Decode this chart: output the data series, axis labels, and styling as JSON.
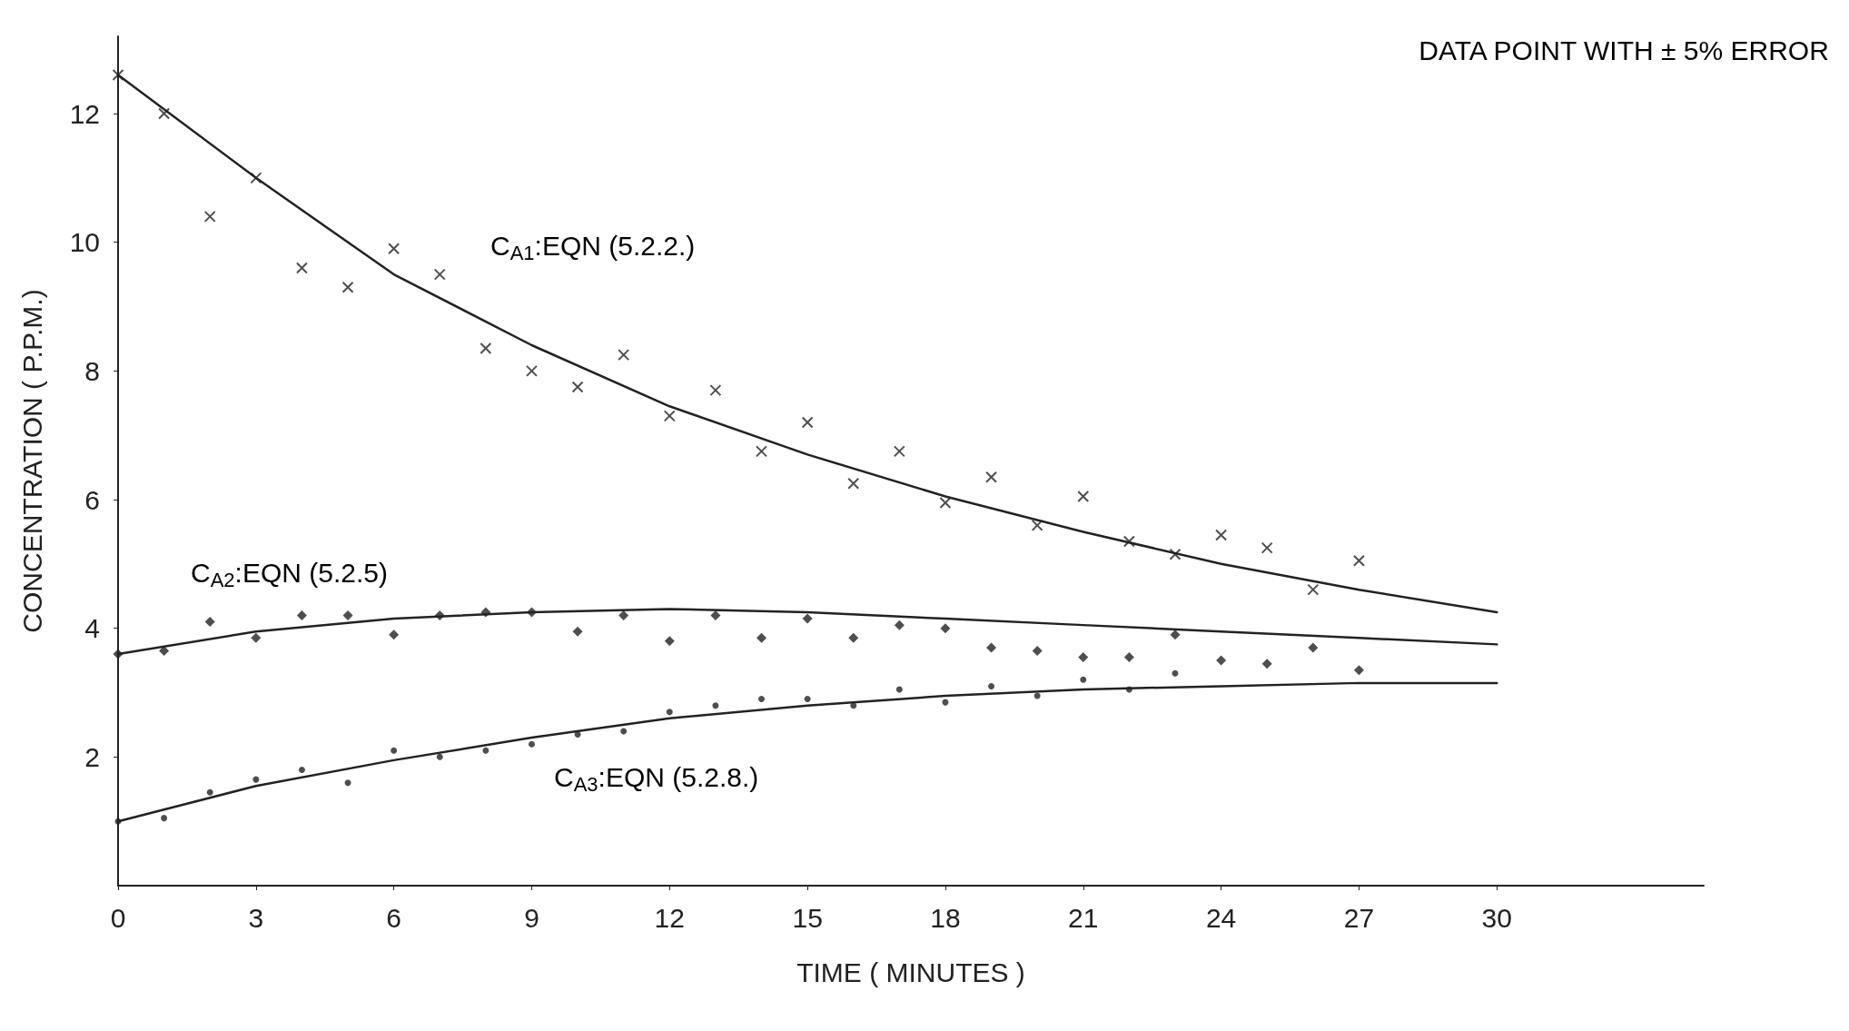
{
  "chart_data": {
    "type": "scatter",
    "xlabel": "TIME ( MINUTES )",
    "ylabel": "CONCENTRATION ( P.P.M.)",
    "xlim": [
      0,
      34.5
    ],
    "ylim": [
      0,
      13.2
    ],
    "xticks": [
      0,
      3,
      6,
      9,
      12,
      15,
      18,
      21,
      24,
      27,
      30
    ],
    "yticks": [
      2,
      4,
      6,
      8,
      10,
      12
    ],
    "grid": false,
    "annotations": [
      "DATA POINT WITH ± 5% ERROR",
      "C$_{A1}$:EQN (5.2.2.)",
      "C$_{A2}$:EQN (5.2.5)",
      "C$_{A3}$:EQN (5.2.8.)"
    ],
    "series": [
      {
        "marker": "cross",
        "color": "#222222",
        "x": [
          0,
          1,
          2,
          3,
          4,
          5,
          6,
          7,
          8,
          9,
          10,
          11,
          12,
          13,
          14,
          15,
          16,
          17,
          18,
          19,
          20,
          21,
          22,
          23,
          24,
          25,
          26,
          27
        ],
        "values": [
          12.6,
          12.0,
          10.4,
          11.0,
          9.6,
          9.3,
          9.9,
          9.5,
          8.35,
          8.0,
          7.75,
          8.25,
          7.3,
          7.7,
          6.75,
          7.2,
          6.25,
          6.75,
          5.95,
          6.35,
          5.6,
          6.05,
          5.35,
          5.15,
          5.45,
          5.25,
          4.6,
          5.05
        ]
      },
      {
        "marker": "diamond",
        "color": "#222222",
        "x": [
          0,
          1,
          2,
          3,
          4,
          5,
          6,
          7,
          8,
          9,
          10,
          11,
          12,
          13,
          14,
          15,
          16,
          17,
          18,
          19,
          20,
          21,
          22,
          23,
          24,
          25,
          26,
          27
        ],
        "values": [
          3.6,
          3.65,
          4.1,
          3.85,
          4.2,
          4.2,
          3.9,
          4.2,
          4.25,
          4.25,
          3.95,
          4.2,
          3.8,
          4.2,
          3.85,
          4.15,
          3.85,
          4.05,
          4.0,
          3.7,
          3.65,
          3.55,
          3.55,
          3.9,
          3.5,
          3.45,
          3.7,
          3.35
        ]
      },
      {
        "marker": "circle",
        "color": "#222222",
        "x": [
          0,
          1,
          2,
          3,
          4,
          5,
          6,
          7,
          8,
          9,
          10,
          11,
          12,
          13,
          14,
          15,
          16,
          17,
          18,
          19,
          20,
          21,
          22,
          23
        ],
        "values": [
          1.0,
          1.05,
          1.45,
          1.65,
          1.8,
          1.6,
          2.1,
          2.0,
          2.1,
          2.2,
          2.35,
          2.4,
          2.7,
          2.8,
          2.9,
          2.9,
          2.8,
          3.05,
          2.85,
          3.1,
          2.95,
          3.2,
          3.05,
          3.3
        ]
      },
      {
        "type": "line",
        "marker": "none",
        "line_style": "solid",
        "color": "#222222",
        "x": [
          0,
          3,
          6,
          9,
          12,
          15,
          18,
          21,
          24,
          27,
          30
        ],
        "values": [
          12.6,
          11.0,
          9.5,
          8.4,
          7.45,
          6.7,
          6.05,
          5.5,
          5.0,
          4.6,
          4.25
        ]
      },
      {
        "type": "line",
        "marker": "none",
        "line_style": "solid",
        "color": "#222222",
        "x": [
          0,
          3,
          6,
          9,
          12,
          15,
          18,
          21,
          24,
          27,
          30
        ],
        "values": [
          3.6,
          3.95,
          4.15,
          4.25,
          4.3,
          4.25,
          4.15,
          4.05,
          3.95,
          3.85,
          3.75
        ]
      },
      {
        "type": "line",
        "marker": "none",
        "line_style": "solid",
        "color": "#222222",
        "x": [
          0,
          3,
          6,
          9,
          12,
          15,
          18,
          21,
          24,
          27,
          30
        ],
        "values": [
          1.0,
          1.55,
          1.95,
          2.3,
          2.6,
          2.8,
          2.95,
          3.05,
          3.1,
          3.15,
          3.15
        ]
      }
    ]
  }
}
